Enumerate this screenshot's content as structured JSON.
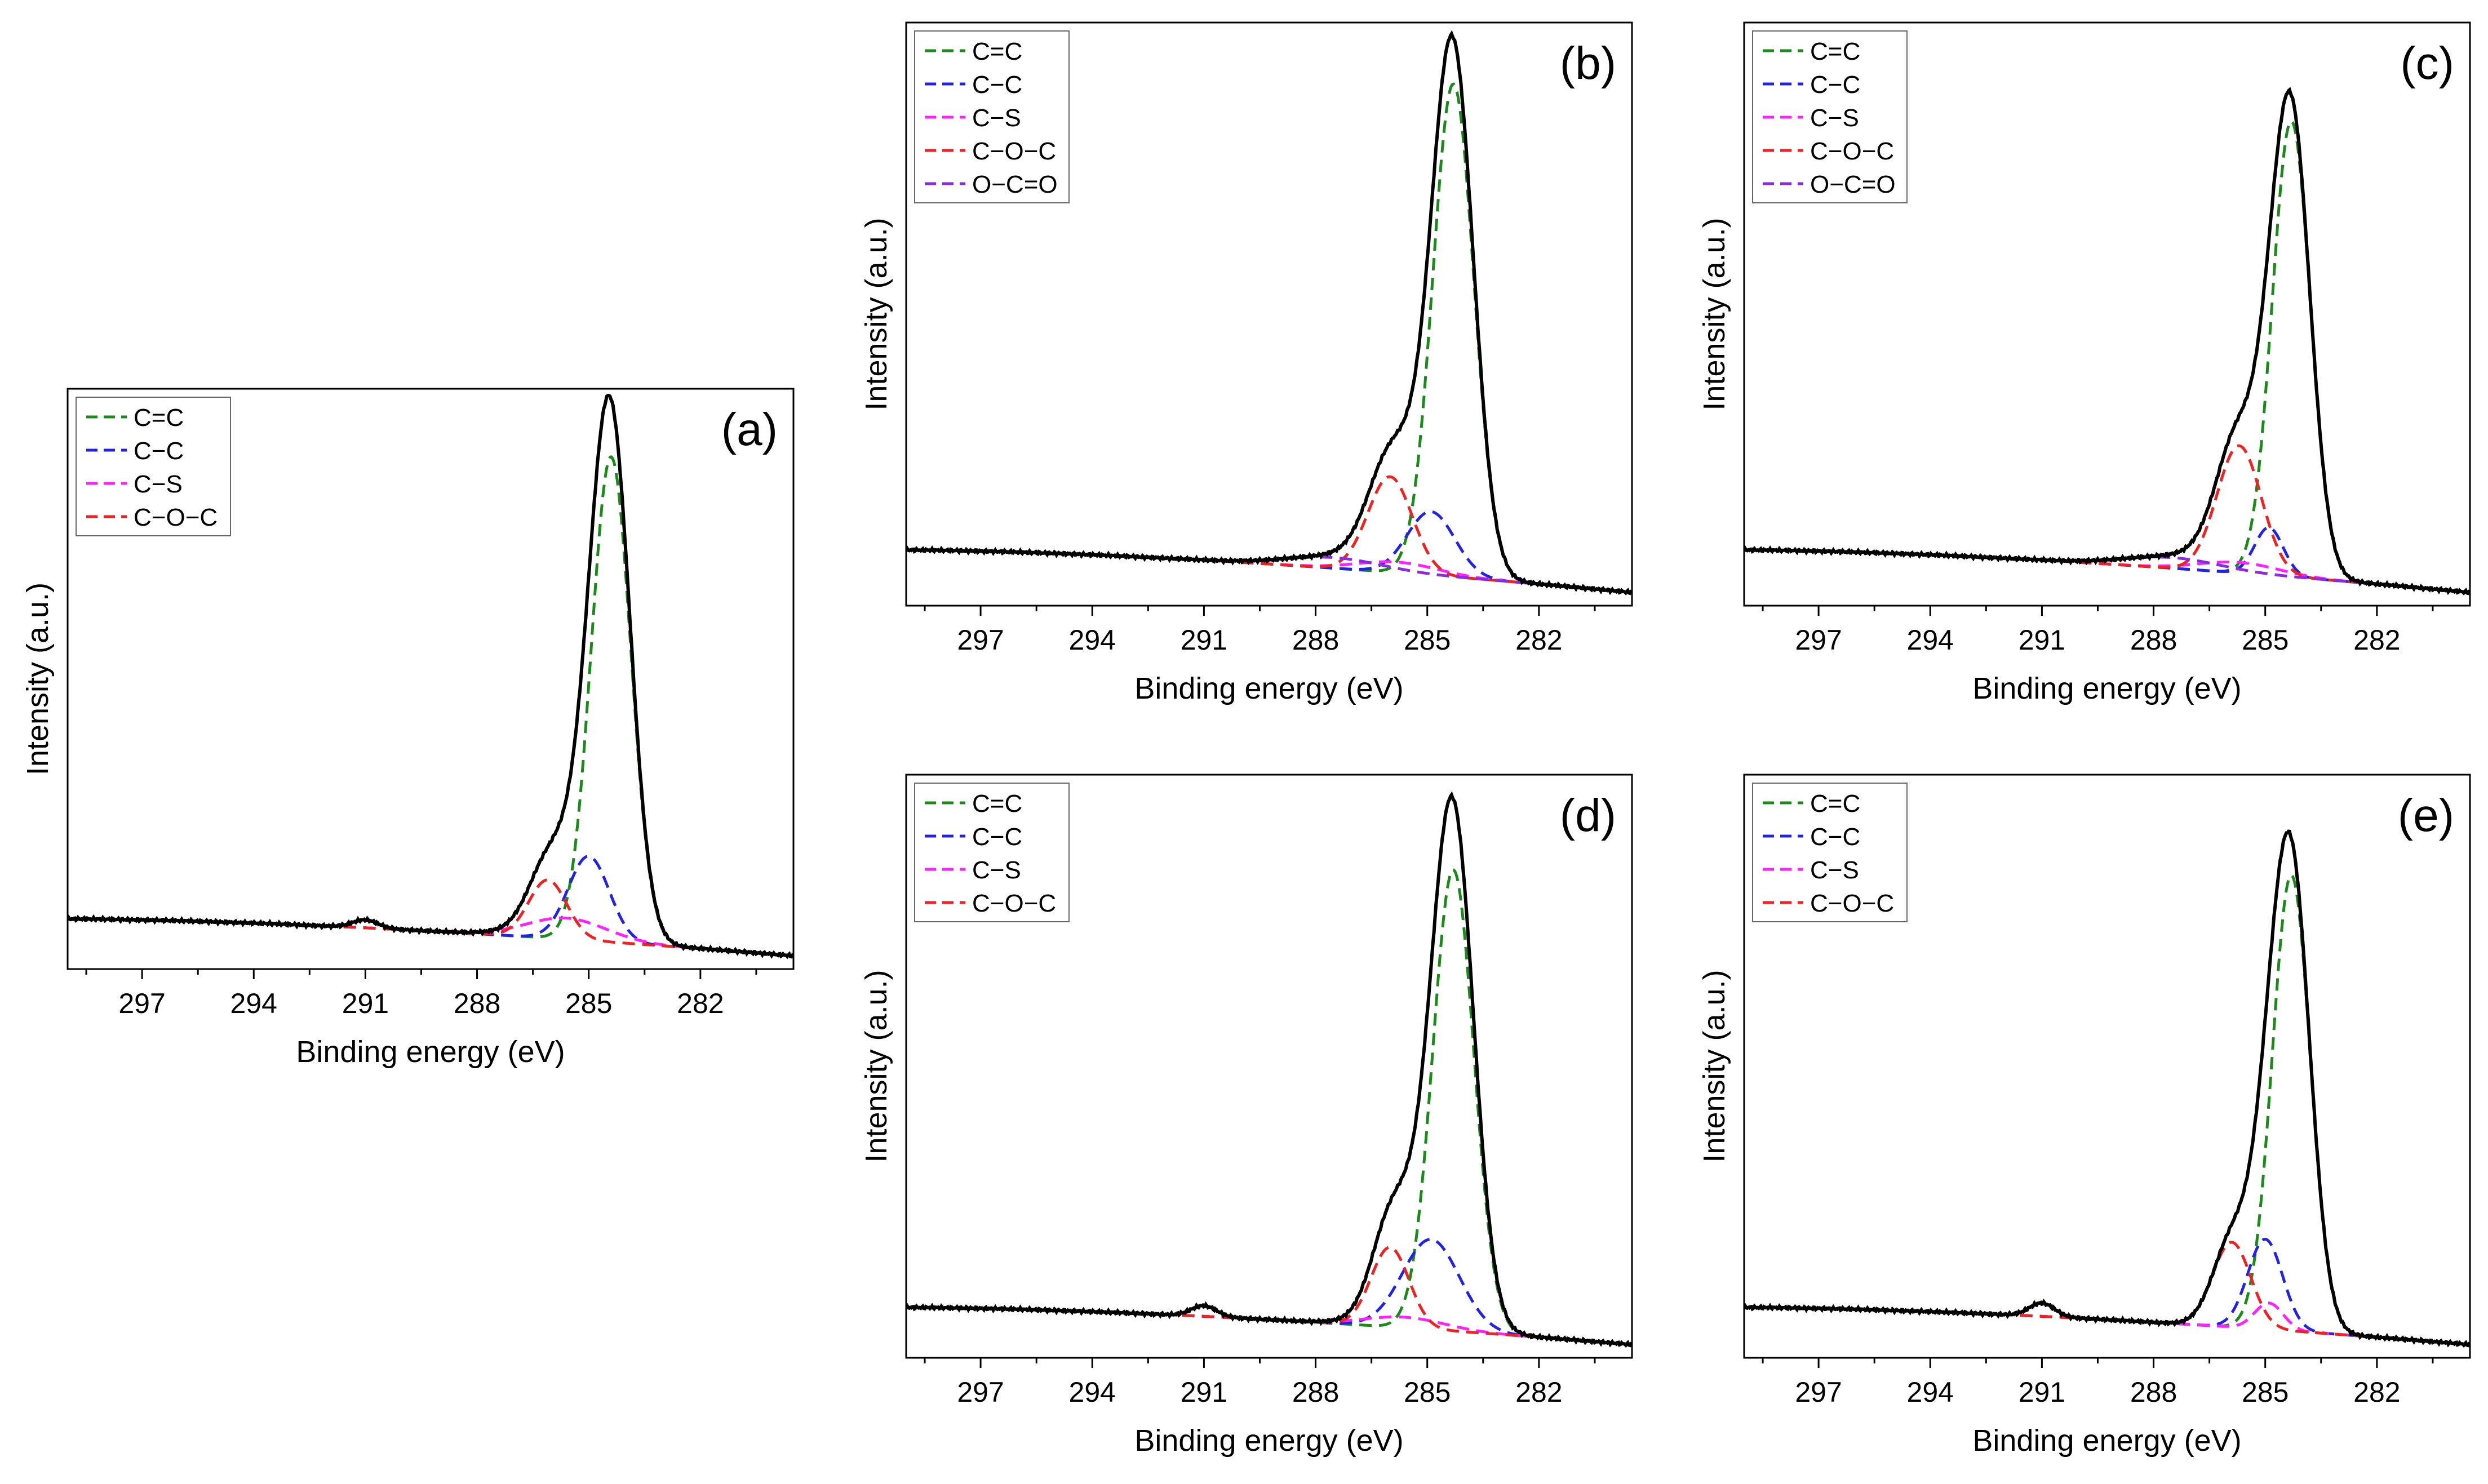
{
  "colors": {
    "envelope": "#000000",
    "C=C": "#1b8a1b",
    "C-C": "#2222e6",
    "C-S": "#ff22ff",
    "C-O-C": "#ee2222",
    "O-C=O": "#8a2be2"
  },
  "chart_data": [
    {
      "panel": "a",
      "label": "(a)",
      "type": "line",
      "xlabel": "Binding energy (eV)",
      "ylabel": "Intensity (a.u.)",
      "xlim": [
        299,
        279.5
      ],
      "ylim": [
        -0.02,
        1.08
      ],
      "xticks": [
        "297",
        "294",
        "291",
        "288",
        "285",
        "282"
      ],
      "xtick_values": [
        297,
        294,
        291,
        288,
        285,
        282
      ],
      "legend": [
        "C=C",
        "C−C",
        "C−S",
        "C−O−C"
      ],
      "legend_position": "top-left",
      "baseline": {
        "start": 0.075,
        "end": 0.005
      },
      "satellite": {
        "center": 291.0,
        "amplitude": 0.015,
        "width": 0.8
      },
      "components": [
        {
          "name": "C=C",
          "center": 284.4,
          "amplitude": 0.92,
          "fwhm": 1.25
        },
        {
          "name": "C-C",
          "center": 285.0,
          "amplitude": 0.16,
          "fwhm": 1.3
        },
        {
          "name": "C-S",
          "center": 285.6,
          "amplitude": 0.04,
          "fwhm": 2.5
        },
        {
          "name": "C-O-C",
          "center": 286.1,
          "amplitude": 0.11,
          "fwhm": 1.2
        }
      ]
    },
    {
      "panel": "b",
      "label": "(b)",
      "type": "line",
      "xlabel": "Binding energy (eV)",
      "ylabel": "Intensity (a.u.)",
      "xlim": [
        299,
        279.5
      ],
      "ylim": [
        -0.02,
        1.08
      ],
      "xticks": [
        "297",
        "294",
        "291",
        "288",
        "285",
        "282"
      ],
      "xtick_values": [
        297,
        294,
        291,
        288,
        285,
        282
      ],
      "legend": [
        "C=C",
        "C−C",
        "C−S",
        "C−O−C",
        "O−C=O"
      ],
      "legend_position": "top-left",
      "baseline": {
        "start": 0.085,
        "end": 0.005
      },
      "satellite": {
        "center": 290.0,
        "amplitude": 0.0,
        "width": 1.0
      },
      "components": [
        {
          "name": "C=C",
          "center": 284.3,
          "amplitude": 0.93,
          "fwhm": 1.3
        },
        {
          "name": "C-C",
          "center": 284.9,
          "amplitude": 0.12,
          "fwhm": 1.5
        },
        {
          "name": "C-S",
          "center": 285.8,
          "amplitude": 0.02,
          "fwhm": 2.5
        },
        {
          "name": "C-O-C",
          "center": 286.0,
          "amplitude": 0.18,
          "fwhm": 1.4
        },
        {
          "name": "O-C=O",
          "center": 287.5,
          "amplitude": 0.02,
          "fwhm": 3.0
        }
      ]
    },
    {
      "panel": "c",
      "label": "(c)",
      "type": "line",
      "xlabel": "Binding energy (eV)",
      "ylabel": "Intensity (a.u.)",
      "xlim": [
        299,
        279.5
      ],
      "ylim": [
        -0.02,
        1.08
      ],
      "xticks": [
        "297",
        "294",
        "291",
        "288",
        "285",
        "282"
      ],
      "xtick_values": [
        297,
        294,
        291,
        288,
        285,
        282
      ],
      "legend": [
        "C=C",
        "C−C",
        "C−S",
        "C−O−C",
        "O−C=O"
      ],
      "legend_position": "top-left",
      "baseline": {
        "start": 0.085,
        "end": 0.005
      },
      "satellite": {
        "center": 290.0,
        "amplitude": 0.0,
        "width": 1.0
      },
      "components": [
        {
          "name": "C=C",
          "center": 284.3,
          "amplitude": 0.86,
          "fwhm": 1.2
        },
        {
          "name": "C-C",
          "center": 284.9,
          "amplitude": 0.09,
          "fwhm": 0.9
        },
        {
          "name": "C-S",
          "center": 285.7,
          "amplitude": 0.02,
          "fwhm": 2.5
        },
        {
          "name": "C-O-C",
          "center": 285.7,
          "amplitude": 0.24,
          "fwhm": 1.4
        },
        {
          "name": "O-C=O",
          "center": 287.5,
          "amplitude": 0.02,
          "fwhm": 3.0
        }
      ]
    },
    {
      "panel": "d",
      "label": "(d)",
      "type": "line",
      "xlabel": "Binding energy (eV)",
      "ylabel": "Intensity (a.u.)",
      "xlim": [
        299,
        279.5
      ],
      "ylim": [
        -0.02,
        1.08
      ],
      "xticks": [
        "297",
        "294",
        "291",
        "288",
        "285",
        "282"
      ],
      "xtick_values": [
        297,
        294,
        291,
        288,
        285,
        282
      ],
      "legend": [
        "C=C",
        "C−C",
        "C−S",
        "C−O−C"
      ],
      "legend_position": "top-left",
      "baseline": {
        "start": 0.075,
        "end": 0.005
      },
      "satellite": {
        "center": 291.0,
        "amplitude": 0.02,
        "width": 0.8
      },
      "components": [
        {
          "name": "C=C",
          "center": 284.3,
          "amplitude": 0.87,
          "fwhm": 1.3
        },
        {
          "name": "C-C",
          "center": 284.9,
          "amplitude": 0.17,
          "fwhm": 1.8
        },
        {
          "name": "C-S",
          "center": 285.6,
          "amplitude": 0.02,
          "fwhm": 2.5
        },
        {
          "name": "C-O-C",
          "center": 286.0,
          "amplitude": 0.15,
          "fwhm": 1.2
        }
      ]
    },
    {
      "panel": "e",
      "label": "(e)",
      "type": "line",
      "xlabel": "Binding energy (eV)",
      "ylabel": "Intensity (a.u.)",
      "xlim": [
        299,
        279.5
      ],
      "ylim": [
        -0.02,
        1.08
      ],
      "xticks": [
        "297",
        "294",
        "291",
        "288",
        "285",
        "282"
      ],
      "xtick_values": [
        297,
        294,
        291,
        288,
        285,
        282
      ],
      "legend": [
        "C=C",
        "C−C",
        "C−S",
        "C−O−C"
      ],
      "legend_position": "top-left",
      "baseline": {
        "start": 0.075,
        "end": 0.005
      },
      "satellite": {
        "center": 291.0,
        "amplitude": 0.025,
        "width": 0.8
      },
      "components": [
        {
          "name": "C=C",
          "center": 284.3,
          "amplitude": 0.86,
          "fwhm": 1.2
        },
        {
          "name": "C-C",
          "center": 285.0,
          "amplitude": 0.17,
          "fwhm": 1.1
        },
        {
          "name": "C-S",
          "center": 284.9,
          "amplitude": 0.05,
          "fwhm": 0.9
        },
        {
          "name": "C-O-C",
          "center": 285.9,
          "amplitude": 0.16,
          "fwhm": 1.2
        }
      ]
    }
  ]
}
